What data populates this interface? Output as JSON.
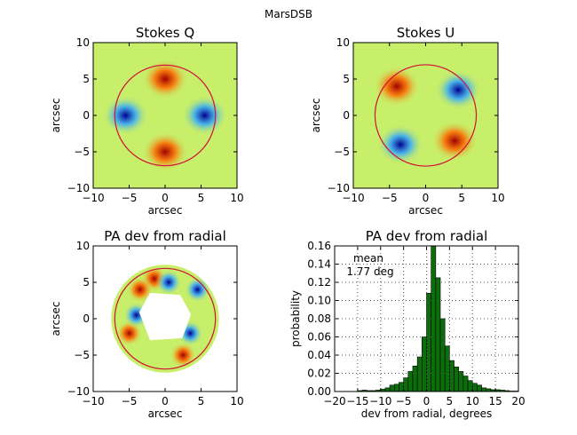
{
  "figure_title": "MarsDSB",
  "colors": {
    "circle": "#d0103a",
    "bar_fill": "#0b6e0b",
    "bar_edge": "#000000",
    "grid": "#555555",
    "field": "#c8ef6a"
  },
  "chart_data": [
    {
      "type": "heatmap",
      "title": "Stokes Q",
      "xlabel": "arcsec",
      "ylabel": "arcsec",
      "xlim": [
        -10,
        10
      ],
      "ylim": [
        -10,
        10
      ],
      "xticks": [
        "−10",
        "−5",
        "0",
        "5",
        "10"
      ],
      "yticks": [
        "−10",
        "−5",
        "0",
        "5",
        "10"
      ],
      "circle_radius": 7,
      "blobs": [
        {
          "x": 0,
          "y": 5,
          "sign": "positive"
        },
        {
          "x": 0,
          "y": -5,
          "sign": "positive"
        },
        {
          "x": -5.5,
          "y": 0,
          "sign": "negative"
        },
        {
          "x": 5.5,
          "y": 0,
          "sign": "negative"
        }
      ]
    },
    {
      "type": "heatmap",
      "title": "Stokes U",
      "xlabel": "arcsec",
      "ylabel": "arcsec",
      "xlim": [
        -10,
        10
      ],
      "ylim": [
        -10,
        10
      ],
      "xticks": [
        "−10",
        "−5",
        "0",
        "5",
        "10"
      ],
      "yticks": [
        "−10",
        "−5",
        "0",
        "5",
        "10"
      ],
      "circle_radius": 7,
      "blobs": [
        {
          "x": -4,
          "y": 4,
          "sign": "positive"
        },
        {
          "x": 4,
          "y": -3.5,
          "sign": "positive"
        },
        {
          "x": 4.5,
          "y": 3.5,
          "sign": "negative"
        },
        {
          "x": -3.5,
          "y": -4,
          "sign": "negative"
        }
      ]
    },
    {
      "type": "heatmap",
      "title": "PA dev from radial",
      "xlabel": "arcsec",
      "ylabel": "arcsec",
      "xlim": [
        -10,
        10
      ],
      "ylim": [
        -10,
        10
      ],
      "xticks": [
        "−10",
        "−5",
        "0",
        "5",
        "10"
      ],
      "yticks": [
        "−10",
        "−5",
        "0",
        "5",
        "10"
      ],
      "circle_radius": 7,
      "annulus": {
        "inner_radius": 3,
        "outer_radius": 7.5
      },
      "blobs": [
        {
          "x": -1.5,
          "y": 5.5,
          "sign": "positive"
        },
        {
          "x": -3.5,
          "y": 4,
          "sign": "positive"
        },
        {
          "x": 2.5,
          "y": -5,
          "sign": "positive"
        },
        {
          "x": -5,
          "y": -2,
          "sign": "positive"
        },
        {
          "x": -4,
          "y": 0.5,
          "sign": "negative"
        },
        {
          "x": 3.5,
          "y": -2,
          "sign": "negative"
        },
        {
          "x": 0.5,
          "y": 5,
          "sign": "negative"
        },
        {
          "x": 4.5,
          "y": 4,
          "sign": "negative"
        }
      ]
    },
    {
      "type": "bar",
      "title": "PA dev from radial",
      "xlabel": "dev from radial, degrees",
      "ylabel": "probability",
      "xlim": [
        -20,
        20
      ],
      "ylim": [
        0,
        0.16
      ],
      "xticks": [
        "−20",
        "−15",
        "−10",
        "−5",
        "0",
        "5",
        "10",
        "15",
        "20"
      ],
      "yticks": [
        "0.00",
        "0.02",
        "0.04",
        "0.06",
        "0.08",
        "0.10",
        "0.12",
        "0.14",
        "0.16"
      ],
      "grid": true,
      "annotation": [
        "mean",
        "1.77 deg"
      ],
      "bin_width": 1,
      "bin_start": -20,
      "values": [
        0.0,
        0.0,
        0.0,
        0.0,
        0.0,
        0.001,
        0.0015,
        0.001,
        0.001,
        0.0015,
        0.0025,
        0.004,
        0.007,
        0.008,
        0.01,
        0.015,
        0.022,
        0.028,
        0.038,
        0.06,
        0.108,
        0.162,
        0.125,
        0.08,
        0.05,
        0.034,
        0.027,
        0.022,
        0.017,
        0.012,
        0.009,
        0.007,
        0.004,
        0.003,
        0.002,
        0.002,
        0.0015,
        0.001,
        0.0005,
        0.0005
      ]
    }
  ]
}
